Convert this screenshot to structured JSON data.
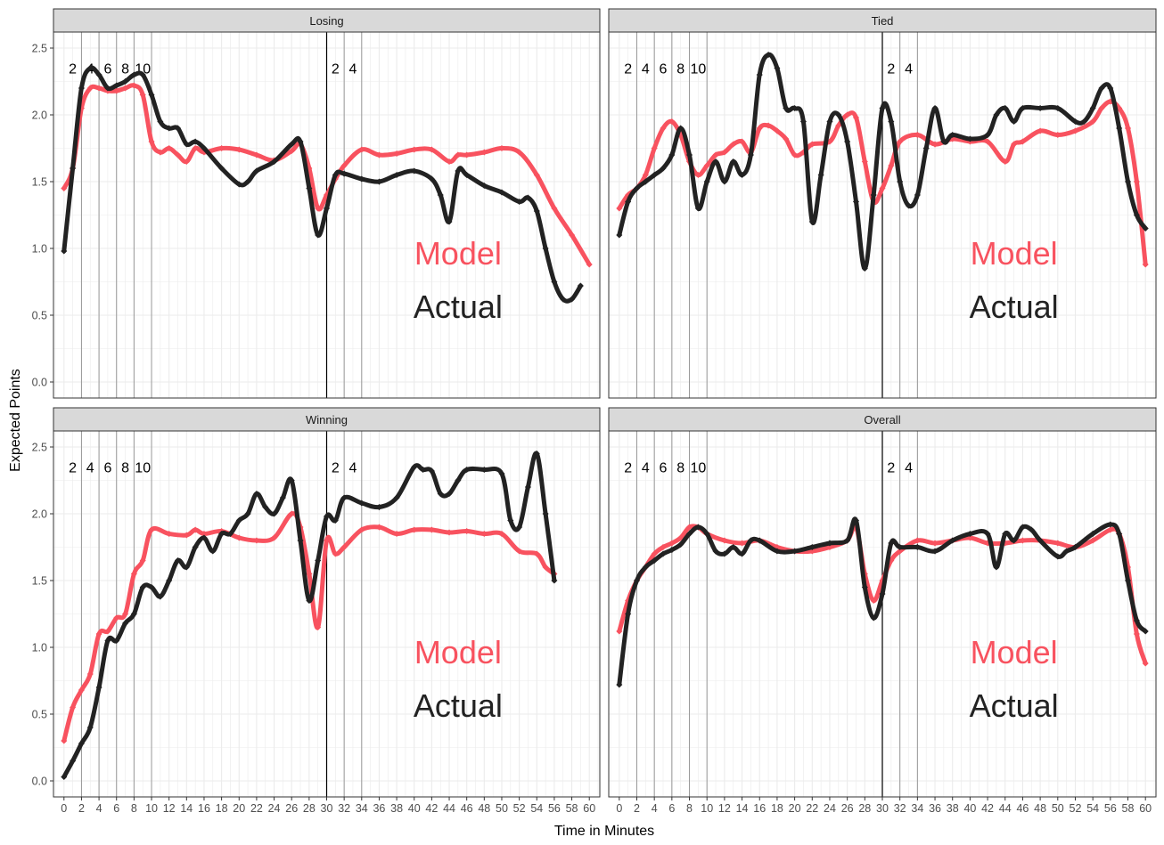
{
  "xlabel": "Time in Minutes",
  "ylabel": "Expected Points",
  "colors": {
    "model": "#f8525f",
    "actual": "#222222",
    "grid": "#ebebeb",
    "strip": "#d9d9d9"
  },
  "x_ticks": [
    0,
    2,
    4,
    6,
    8,
    10,
    12,
    14,
    16,
    18,
    20,
    22,
    24,
    26,
    28,
    30,
    32,
    34,
    36,
    38,
    40,
    42,
    44,
    46,
    48,
    50,
    52,
    54,
    56,
    58,
    60
  ],
  "y_ticks": [
    0.0,
    0.5,
    1.0,
    1.5,
    2.0,
    2.5
  ],
  "y_tick_labels": [
    "0.0",
    "0.5",
    "1.0",
    "1.5",
    "2.0",
    "2.5"
  ],
  "marker_lines": [
    2,
    4,
    6,
    8,
    10,
    30,
    32,
    34
  ],
  "half_line": 30,
  "annotations": [
    "2",
    "4",
    "6",
    "8",
    "10",
    "2",
    "4"
  ],
  "annotation_x": [
    1,
    3,
    5,
    7,
    9,
    31,
    33
  ],
  "legend": {
    "model": "Model",
    "actual": "Actual"
  },
  "chart_data": [
    {
      "type": "line",
      "title": "Losing",
      "xlim": [
        -1.2,
        61.2
      ],
      "ylim": [
        -0.12,
        2.62
      ],
      "series": [
        {
          "name": "Model",
          "x": [
            0,
            1,
            2,
            3,
            4,
            5,
            6,
            7,
            8,
            9,
            10,
            11,
            12,
            13,
            14,
            15,
            16,
            18,
            20,
            22,
            24,
            26,
            27,
            28,
            29,
            30,
            31,
            32,
            34,
            36,
            38,
            40,
            42,
            44,
            45,
            46,
            48,
            50,
            52,
            54,
            56,
            58,
            60
          ],
          "values": [
            1.45,
            1.6,
            2.05,
            2.2,
            2.2,
            2.18,
            2.18,
            2.2,
            2.22,
            2.15,
            1.8,
            1.72,
            1.75,
            1.7,
            1.65,
            1.75,
            1.72,
            1.75,
            1.74,
            1.7,
            1.66,
            1.73,
            1.78,
            1.6,
            1.3,
            1.4,
            1.52,
            1.62,
            1.74,
            1.7,
            1.71,
            1.74,
            1.74,
            1.65,
            1.7,
            1.7,
            1.72,
            1.75,
            1.72,
            1.55,
            1.3,
            1.1,
            0.88
          ]
        },
        {
          "name": "Actual",
          "x": [
            0,
            1,
            2,
            3,
            4,
            5,
            6,
            7,
            8,
            9,
            10,
            11,
            12,
            13,
            14,
            15,
            16,
            18,
            20,
            21,
            22,
            24,
            26,
            27,
            28,
            29,
            30,
            31,
            32,
            34,
            36,
            38,
            40,
            42,
            43,
            44,
            45,
            46,
            48,
            50,
            52,
            53,
            54,
            55,
            56,
            57,
            58,
            59
          ],
          "values": [
            0.98,
            1.6,
            2.2,
            2.35,
            2.3,
            2.2,
            2.22,
            2.25,
            2.3,
            2.3,
            2.15,
            1.95,
            1.9,
            1.9,
            1.78,
            1.8,
            1.75,
            1.6,
            1.48,
            1.5,
            1.58,
            1.65,
            1.78,
            1.8,
            1.45,
            1.1,
            1.3,
            1.55,
            1.56,
            1.52,
            1.5,
            1.55,
            1.58,
            1.52,
            1.4,
            1.2,
            1.58,
            1.55,
            1.47,
            1.42,
            1.35,
            1.38,
            1.28,
            1.0,
            0.75,
            0.62,
            0.62,
            0.72
          ]
        }
      ]
    },
    {
      "type": "line",
      "title": "Tied",
      "xlim": [
        -1.2,
        61.2
      ],
      "ylim": [
        -0.12,
        2.62
      ],
      "series": [
        {
          "name": "Model",
          "x": [
            0,
            1,
            2,
            3,
            4,
            5,
            6,
            7,
            8,
            9,
            10,
            11,
            12,
            13,
            14,
            15,
            16,
            17,
            18,
            19,
            20,
            21,
            22,
            24,
            25,
            26,
            27,
            28,
            29,
            30,
            31,
            32,
            34,
            36,
            38,
            40,
            42,
            44,
            45,
            46,
            48,
            50,
            52,
            54,
            55,
            56,
            57,
            58,
            59,
            60
          ],
          "values": [
            1.3,
            1.4,
            1.45,
            1.55,
            1.75,
            1.9,
            1.95,
            1.85,
            1.65,
            1.55,
            1.62,
            1.7,
            1.72,
            1.78,
            1.8,
            1.72,
            1.9,
            1.92,
            1.88,
            1.82,
            1.7,
            1.72,
            1.78,
            1.8,
            1.92,
            2.0,
            1.98,
            1.65,
            1.35,
            1.45,
            1.62,
            1.8,
            1.85,
            1.78,
            1.82,
            1.8,
            1.8,
            1.65,
            1.78,
            1.8,
            1.88,
            1.85,
            1.88,
            1.95,
            2.05,
            2.1,
            2.05,
            1.9,
            1.5,
            0.88
          ]
        },
        {
          "name": "Actual",
          "x": [
            0,
            1,
            2,
            3,
            4,
            5,
            6,
            7,
            8,
            9,
            10,
            11,
            12,
            13,
            14,
            15,
            16,
            17,
            18,
            19,
            20,
            21,
            22,
            23,
            24,
            25,
            26,
            27,
            28,
            29,
            30,
            31,
            32,
            33,
            34,
            35,
            36,
            37,
            38,
            40,
            42,
            43,
            44,
            45,
            46,
            48,
            50,
            52,
            53,
            54,
            55,
            56,
            57,
            58,
            59,
            60
          ],
          "values": [
            1.1,
            1.35,
            1.45,
            1.5,
            1.55,
            1.6,
            1.7,
            1.9,
            1.7,
            1.3,
            1.5,
            1.65,
            1.5,
            1.65,
            1.55,
            1.7,
            2.3,
            2.45,
            2.35,
            2.05,
            2.05,
            1.95,
            1.2,
            1.55,
            1.95,
            2.0,
            1.8,
            1.35,
            0.85,
            1.4,
            2.05,
            1.95,
            1.5,
            1.32,
            1.4,
            1.75,
            2.05,
            1.8,
            1.85,
            1.82,
            1.85,
            2.0,
            2.05,
            1.95,
            2.05,
            2.05,
            2.05,
            1.95,
            1.95,
            2.05,
            2.2,
            2.2,
            1.9,
            1.5,
            1.25,
            1.15
          ]
        }
      ]
    },
    {
      "type": "line",
      "title": "Winning",
      "xlim": [
        -1.2,
        61.2
      ],
      "ylim": [
        -0.12,
        2.62
      ],
      "series": [
        {
          "name": "Model",
          "x": [
            0,
            1,
            2,
            3,
            4,
            5,
            6,
            7,
            8,
            9,
            10,
            12,
            14,
            15,
            16,
            18,
            20,
            22,
            24,
            26,
            27,
            28,
            29,
            30,
            31,
            32,
            34,
            36,
            38,
            40,
            42,
            44,
            46,
            48,
            50,
            52,
            54,
            55,
            56
          ],
          "values": [
            0.3,
            0.55,
            0.68,
            0.8,
            1.1,
            1.12,
            1.22,
            1.25,
            1.55,
            1.65,
            1.88,
            1.85,
            1.84,
            1.88,
            1.85,
            1.87,
            1.82,
            1.8,
            1.82,
            2.0,
            1.9,
            1.55,
            1.15,
            1.8,
            1.7,
            1.75,
            1.88,
            1.9,
            1.85,
            1.88,
            1.88,
            1.86,
            1.87,
            1.85,
            1.85,
            1.72,
            1.7,
            1.6,
            1.55
          ]
        },
        {
          "name": "Actual",
          "x": [
            0,
            1,
            2,
            3,
            4,
            5,
            6,
            7,
            8,
            9,
            10,
            11,
            12,
            13,
            14,
            15,
            16,
            17,
            18,
            19,
            20,
            21,
            22,
            23,
            24,
            25,
            26,
            27,
            28,
            29,
            30,
            31,
            32,
            34,
            36,
            38,
            40,
            41,
            42,
            43,
            44,
            45,
            46,
            48,
            50,
            51,
            52,
            53,
            54,
            55,
            56
          ],
          "values": [
            0.03,
            0.15,
            0.28,
            0.4,
            0.7,
            1.05,
            1.05,
            1.18,
            1.25,
            1.45,
            1.45,
            1.38,
            1.5,
            1.65,
            1.6,
            1.75,
            1.82,
            1.72,
            1.85,
            1.85,
            1.95,
            2.0,
            2.15,
            2.05,
            2.0,
            2.12,
            2.25,
            1.8,
            1.35,
            1.65,
            1.98,
            1.95,
            2.12,
            2.08,
            2.05,
            2.12,
            2.35,
            2.33,
            2.32,
            2.15,
            2.15,
            2.25,
            2.33,
            2.33,
            2.3,
            1.95,
            1.9,
            2.2,
            2.45,
            2.0,
            1.5
          ]
        }
      ]
    },
    {
      "type": "line",
      "title": "Overall",
      "xlim": [
        -1.2,
        61.2
      ],
      "ylim": [
        -0.12,
        2.62
      ],
      "series": [
        {
          "name": "Model",
          "x": [
            0,
            1,
            2,
            3,
            4,
            5,
            6,
            7,
            8,
            9,
            10,
            12,
            14,
            16,
            18,
            20,
            22,
            24,
            26,
            27,
            28,
            29,
            30,
            31,
            32,
            34,
            36,
            38,
            40,
            42,
            44,
            46,
            48,
            50,
            52,
            54,
            56,
            57,
            58,
            59,
            60
          ],
          "values": [
            1.12,
            1.35,
            1.5,
            1.6,
            1.7,
            1.75,
            1.78,
            1.82,
            1.9,
            1.9,
            1.85,
            1.8,
            1.78,
            1.8,
            1.75,
            1.72,
            1.72,
            1.75,
            1.8,
            1.9,
            1.55,
            1.35,
            1.5,
            1.65,
            1.72,
            1.8,
            1.78,
            1.8,
            1.82,
            1.78,
            1.78,
            1.8,
            1.8,
            1.78,
            1.75,
            1.8,
            1.88,
            1.85,
            1.6,
            1.1,
            0.88
          ]
        },
        {
          "name": "Actual",
          "x": [
            0,
            1,
            2,
            3,
            4,
            5,
            6,
            7,
            8,
            9,
            10,
            11,
            12,
            13,
            14,
            15,
            16,
            18,
            20,
            22,
            24,
            26,
            27,
            28,
            29,
            30,
            31,
            32,
            34,
            36,
            38,
            40,
            42,
            43,
            44,
            45,
            46,
            47,
            48,
            50,
            51,
            52,
            54,
            56,
            57,
            58,
            59,
            60
          ],
          "values": [
            0.72,
            1.25,
            1.5,
            1.6,
            1.65,
            1.7,
            1.73,
            1.77,
            1.85,
            1.9,
            1.85,
            1.72,
            1.7,
            1.75,
            1.7,
            1.8,
            1.8,
            1.72,
            1.72,
            1.75,
            1.78,
            1.8,
            1.95,
            1.45,
            1.22,
            1.4,
            1.78,
            1.75,
            1.75,
            1.72,
            1.8,
            1.85,
            1.85,
            1.6,
            1.85,
            1.8,
            1.9,
            1.88,
            1.8,
            1.68,
            1.72,
            1.75,
            1.85,
            1.92,
            1.85,
            1.5,
            1.2,
            1.12
          ]
        }
      ]
    }
  ]
}
